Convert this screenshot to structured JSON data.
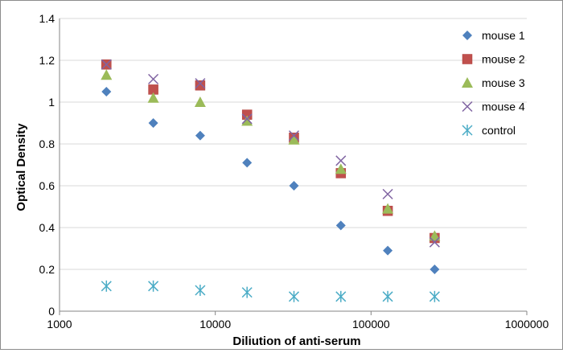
{
  "chart_data": {
    "type": "scatter",
    "title": "",
    "xlabel": "Diliution of anti-serum",
    "ylabel": "Optical Density",
    "x_scale": "log",
    "xlim": [
      1000,
      1000000
    ],
    "ylim": [
      0,
      1.4
    ],
    "x_ticks": [
      1000,
      10000,
      100000,
      1000000
    ],
    "x_tick_labels": [
      "1000",
      "10000",
      "100000",
      "1000000"
    ],
    "y_ticks": [
      0,
      0.2,
      0.4,
      0.6,
      0.8,
      1,
      1.2,
      1.4
    ],
    "y_tick_labels": [
      "0",
      "0.2",
      "0.4",
      "0.6",
      "0.8",
      "1",
      "1.2",
      "1.4"
    ],
    "grid": "horizontal",
    "legend_position": "right",
    "x": [
      2000,
      4000,
      8000,
      16000,
      32000,
      64000,
      128000,
      256000
    ],
    "series": [
      {
        "name": "mouse 1",
        "marker": "diamond",
        "color": "#4F81BD",
        "values": [
          1.05,
          0.9,
          0.84,
          0.71,
          0.6,
          0.41,
          0.29,
          0.2
        ]
      },
      {
        "name": "mouse 2",
        "marker": "square",
        "color": "#C0504D",
        "values": [
          1.18,
          1.06,
          1.08,
          0.94,
          0.83,
          0.66,
          0.48,
          0.35
        ]
      },
      {
        "name": "mouse 3",
        "marker": "triangle",
        "color": "#9BBB59",
        "values": [
          1.13,
          1.02,
          1.0,
          0.91,
          0.82,
          0.68,
          0.49,
          0.36
        ]
      },
      {
        "name": "mouse 4",
        "marker": "x",
        "color": "#8064A2",
        "values": [
          1.18,
          1.11,
          1.09,
          0.92,
          0.84,
          0.72,
          0.56,
          0.33
        ]
      },
      {
        "name": "control",
        "marker": "star",
        "color": "#4BACC6",
        "values": [
          0.12,
          0.12,
          0.1,
          0.09,
          0.07,
          0.07,
          0.07,
          0.07
        ]
      }
    ]
  }
}
